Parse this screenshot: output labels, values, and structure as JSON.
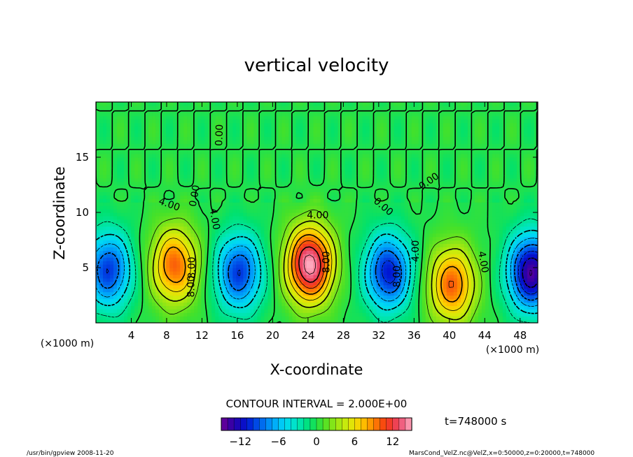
{
  "chart_data": {
    "type": "heatmap",
    "title": "vertical velocity",
    "xlabel": "X-coordinate",
    "ylabel": "Z-coordinate",
    "x_unit_left": "(×1000 m)",
    "x_unit_right": "(×1000 m)",
    "xlim": [
      0,
      50
    ],
    "ylim": [
      0,
      20
    ],
    "x_ticks": [
      4,
      8,
      12,
      16,
      20,
      24,
      28,
      32,
      36,
      40,
      44,
      48
    ],
    "x_tick_labels": [
      "4",
      "8",
      "12",
      "16",
      "20",
      "24",
      "28",
      "32",
      "36",
      "40",
      "44",
      "48"
    ],
    "y_ticks": [
      5,
      10,
      15
    ],
    "y_tick_labels": [
      "5",
      "10",
      "15"
    ],
    "contour_interval_text": "CONTOUR INTERVAL = 2.000E+00",
    "time_text": "t=748000 s",
    "colorbar": {
      "range": [
        -15,
        15
      ],
      "ticks": [
        -12,
        -6,
        0,
        6,
        12
      ],
      "tick_labels": [
        "−12",
        "−6",
        "0",
        "6",
        "12"
      ]
    },
    "contour_labels": [
      {
        "text": "0.00",
        "x": 14.0,
        "z": 17.0,
        "angle": -88
      },
      {
        "text": "0.00",
        "x": 11.2,
        "z": 11.5,
        "angle": -80
      },
      {
        "text": "4.00",
        "x": 8.3,
        "z": 10.7,
        "angle": 20
      },
      {
        "text": "4.00",
        "x": 13.4,
        "z": 9.4,
        "angle": 80
      },
      {
        "text": "8.00",
        "x": 10.9,
        "z": 5.0,
        "angle": -90
      },
      {
        "text": "8.00",
        "x": 10.8,
        "z": 3.3,
        "angle": -90
      },
      {
        "text": "4.00",
        "x": 25.1,
        "z": 9.7,
        "angle": 0
      },
      {
        "text": "8.00",
        "x": 26.1,
        "z": 5.5,
        "angle": -90
      },
      {
        "text": "0.00",
        "x": 32.5,
        "z": 10.5,
        "angle": 40
      },
      {
        "text": "0.00",
        "x": 37.7,
        "z": 12.8,
        "angle": -35
      },
      {
        "text": "4.00",
        "x": 36.2,
        "z": 6.5,
        "angle": -90
      },
      {
        "text": "8.00",
        "x": 34.1,
        "z": 4.2,
        "angle": -90
      },
      {
        "text": "4.00",
        "x": 43.8,
        "z": 5.5,
        "angle": 80
      }
    ],
    "extrema": [
      {
        "kind": "max",
        "x": 24.2,
        "z": 5.3,
        "value": 15
      },
      {
        "kind": "max",
        "x": 8.9,
        "z": 5.2,
        "value": 10
      },
      {
        "kind": "max",
        "x": 40.3,
        "z": 3.5,
        "value": 10
      },
      {
        "kind": "min",
        "x": 1.4,
        "z": 4.8,
        "value": -10
      },
      {
        "kind": "min",
        "x": 16.2,
        "z": 4.6,
        "value": -10
      },
      {
        "kind": "min",
        "x": 33.1,
        "z": 4.6,
        "value": -11
      },
      {
        "kind": "min",
        "x": 49.3,
        "z": 4.6,
        "value": -14
      }
    ]
  },
  "footer": {
    "left": "/usr/bin/gpview  2008-11-20",
    "right": "MarsCond_VelZ.nc@VelZ,x=0:50000,z=0:20000,t=748000"
  }
}
